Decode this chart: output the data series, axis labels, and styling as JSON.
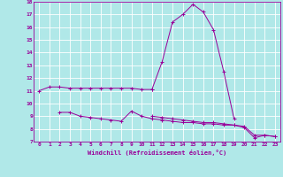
{
  "x": [
    0,
    1,
    2,
    3,
    4,
    5,
    6,
    7,
    8,
    9,
    10,
    11,
    12,
    13,
    14,
    15,
    16,
    17,
    18,
    19,
    20,
    21,
    22,
    23
  ],
  "line1": [
    11.0,
    11.3,
    11.3,
    11.2,
    11.2,
    11.2,
    11.2,
    11.2,
    11.2,
    11.2,
    11.1,
    11.1,
    null,
    null,
    null,
    null,
    null,
    null,
    null,
    null,
    null,
    null,
    null,
    null
  ],
  "line2": [
    null,
    null,
    null,
    null,
    null,
    null,
    null,
    null,
    null,
    null,
    null,
    11.1,
    13.3,
    16.4,
    17.0,
    17.8,
    17.2,
    15.8,
    12.5,
    8.8,
    null,
    null,
    null,
    null
  ],
  "line3": [
    null,
    null,
    9.3,
    9.3,
    9.0,
    8.9,
    8.8,
    8.7,
    8.6,
    9.4,
    9.0,
    8.8,
    8.7,
    8.6,
    8.5,
    8.5,
    8.4,
    8.4,
    8.3,
    8.3,
    8.1,
    7.3,
    7.5,
    7.4
  ],
  "line4": [
    null,
    null,
    null,
    null,
    null,
    null,
    null,
    null,
    null,
    null,
    null,
    9.0,
    8.9,
    8.8,
    8.7,
    8.6,
    8.5,
    8.5,
    8.4,
    8.3,
    8.2,
    7.5,
    7.5,
    7.4
  ],
  "xlabel": "Windchill (Refroidissement éolien,°C)",
  "ylim": [
    7,
    18
  ],
  "xlim": [
    -0.5,
    23.5
  ],
  "yticks": [
    7,
    8,
    9,
    10,
    11,
    12,
    13,
    14,
    15,
    16,
    17,
    18
  ],
  "xticks": [
    0,
    1,
    2,
    3,
    4,
    5,
    6,
    7,
    8,
    9,
    10,
    11,
    12,
    13,
    14,
    15,
    16,
    17,
    18,
    19,
    20,
    21,
    22,
    23
  ],
  "line_color": "#990099",
  "bg_color": "#b0e8e8",
  "grid_color": "#ffffff",
  "marker": "+"
}
